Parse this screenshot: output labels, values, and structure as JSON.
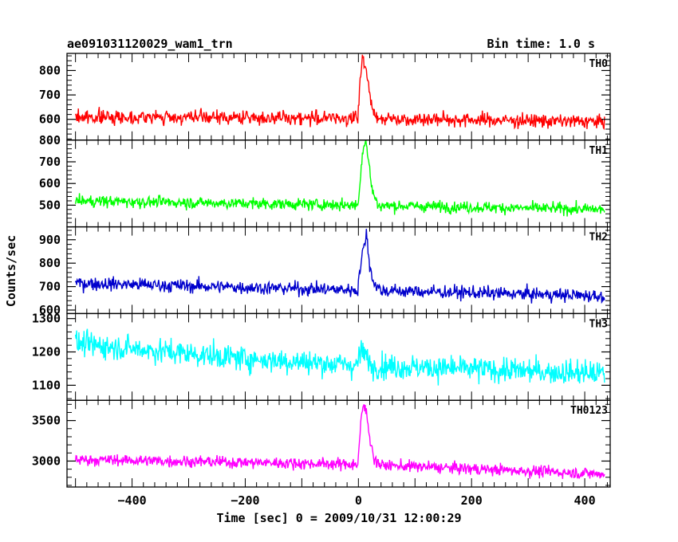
{
  "chart_data": {
    "type": "line",
    "title": "ae091031120029_wam1_trn",
    "subtitle": "Bin time: 1.0 s",
    "xlabel": "Time [sec] 0 = 2009/10/31 12:00:29",
    "ylabel": "Counts/sec",
    "xlim": [
      -515,
      445
    ],
    "x_range": [
      -500,
      435
    ],
    "x_ticks": [
      -400,
      -200,
      0,
      200,
      400
    ],
    "x_tick_labels": [
      "−400",
      "−200",
      "0",
      "200",
      "400"
    ],
    "series": [
      {
        "name": "TH0",
        "color": "#ff0000",
        "ylim": [
          515,
          870
        ],
        "y_ticks": [
          600,
          700,
          800
        ],
        "y_tick_labels": [
          "600",
          "700",
          "800"
        ],
        "baseline": [
          [
            -500,
            610
          ],
          [
            0,
            605
          ],
          [
            435,
            590
          ]
        ],
        "noise": 26,
        "min_tick": 20,
        "burst": [
          [
            0,
            620
          ],
          [
            3,
            760
          ],
          [
            7,
            860
          ],
          [
            12,
            820
          ],
          [
            18,
            730
          ],
          [
            25,
            640
          ],
          [
            35,
            610
          ]
        ]
      },
      {
        "name": "TH1",
        "color": "#00ff00",
        "ylim": [
          400,
          800
        ],
        "y_ticks": [
          500,
          600,
          700,
          800
        ],
        "y_tick_labels": [
          "500",
          "600",
          "700",
          "800"
        ],
        "baseline": [
          [
            -500,
            520
          ],
          [
            0,
            500
          ],
          [
            435,
            480
          ]
        ],
        "noise": 24,
        "min_tick": 20,
        "burst": [
          [
            0,
            520
          ],
          [
            4,
            650
          ],
          [
            8,
            760
          ],
          [
            13,
            800
          ],
          [
            18,
            700
          ],
          [
            25,
            560
          ],
          [
            35,
            500
          ]
        ]
      },
      {
        "name": "TH2",
        "color": "#0000cc",
        "ylim": [
          585,
          955
        ],
        "y_ticks": [
          600,
          700,
          800,
          900
        ],
        "y_tick_labels": [
          "600",
          "700",
          "800",
          "900"
        ],
        "baseline": [
          [
            -500,
            715
          ],
          [
            0,
            685
          ],
          [
            435,
            660
          ]
        ],
        "noise": 26,
        "min_tick": 20,
        "burst": [
          [
            0,
            720
          ],
          [
            5,
            810
          ],
          [
            9,
            860
          ],
          [
            14,
            930
          ],
          [
            20,
            790
          ],
          [
            28,
            710
          ],
          [
            38,
            690
          ]
        ]
      },
      {
        "name": "TH3",
        "color": "#00ffff",
        "ylim": [
          1055,
          1315
        ],
        "y_ticks": [
          1100,
          1200,
          1300
        ],
        "y_tick_labels": [
          "1100",
          "1200",
          "1300"
        ],
        "baseline": [
          [
            -500,
            1225
          ],
          [
            -200,
            1180
          ],
          [
            0,
            1160
          ],
          [
            435,
            1135
          ]
        ],
        "noise": 34,
        "min_tick": 20,
        "burst": [
          [
            0,
            1190
          ],
          [
            8,
            1200
          ],
          [
            20,
            1170
          ]
        ]
      },
      {
        "name": "TH0123",
        "color": "#ff00ff",
        "ylim": [
          2680,
          3750
        ],
        "y_ticks": [
          3000,
          3500
        ],
        "y_tick_labels": [
          "3000",
          "3500"
        ],
        "baseline": [
          [
            -500,
            3020
          ],
          [
            0,
            2960
          ],
          [
            435,
            2840
          ]
        ],
        "noise": 65,
        "min_tick": 100,
        "burst": [
          [
            0,
            3050
          ],
          [
            4,
            3450
          ],
          [
            9,
            3700
          ],
          [
            14,
            3600
          ],
          [
            20,
            3300
          ],
          [
            28,
            3020
          ],
          [
            38,
            2960
          ]
        ]
      }
    ]
  }
}
